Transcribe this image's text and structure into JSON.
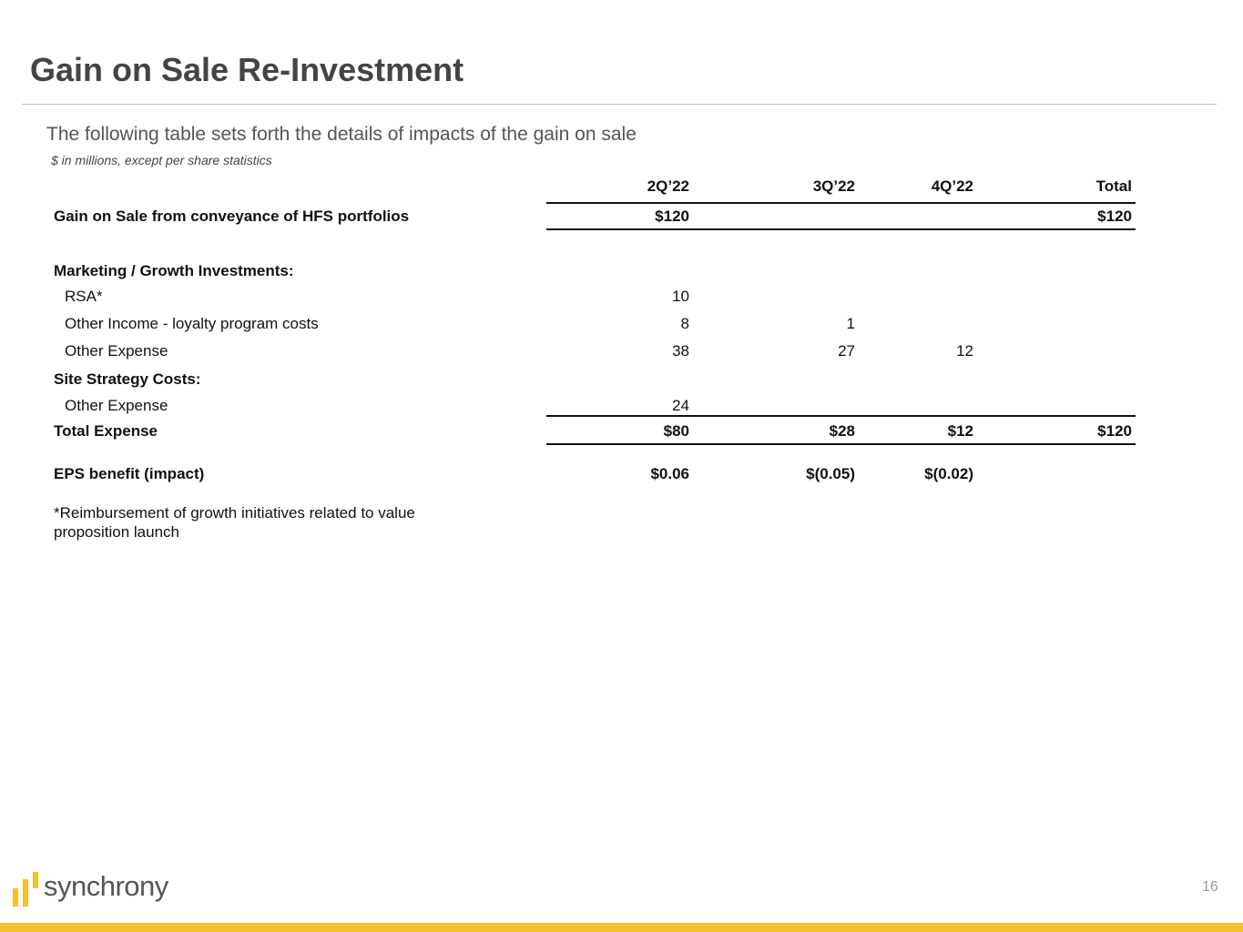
{
  "header": {
    "title": "Gain on Sale Re-Investment",
    "subtitle": "The following table sets forth the details of impacts of the gain on sale",
    "note": "$ in millions, except per share statistics"
  },
  "table": {
    "columns": [
      "2Q’22",
      "3Q’22",
      "4Q’22",
      "Total"
    ],
    "rows": [
      {
        "label": "Gain on Sale from conveyance of HFS portfolios",
        "cells": [
          "$120",
          null,
          null,
          "$120"
        ]
      },
      {
        "label": "Marketing / Growth Investments:",
        "cells": [
          null,
          null,
          null,
          null
        ]
      },
      {
        "label": "RSA*",
        "cells": [
          "10",
          null,
          null,
          null
        ]
      },
      {
        "label": "Other Income - loyalty program costs",
        "cells": [
          "8",
          "1",
          null,
          null
        ]
      },
      {
        "label": "Other Expense",
        "cells": [
          "38",
          "27",
          "12",
          null
        ]
      },
      {
        "label": "Site Strategy Costs:",
        "cells": [
          null,
          null,
          null,
          null
        ]
      },
      {
        "label": "Other Expense",
        "cells": [
          "24",
          null,
          null,
          null
        ]
      },
      {
        "label": "Total Expense",
        "cells": [
          "$80",
          "$28",
          "$12",
          "$120"
        ]
      },
      {
        "label": "EPS benefit (impact)",
        "cells": [
          "$0.06",
          "$(0.05)",
          "$(0.02)",
          null
        ]
      }
    ]
  },
  "footnote": "*Reimbursement of growth initiatives related to value proposition launch",
  "footer": {
    "logo": "synchrony",
    "page_number": "16"
  }
}
